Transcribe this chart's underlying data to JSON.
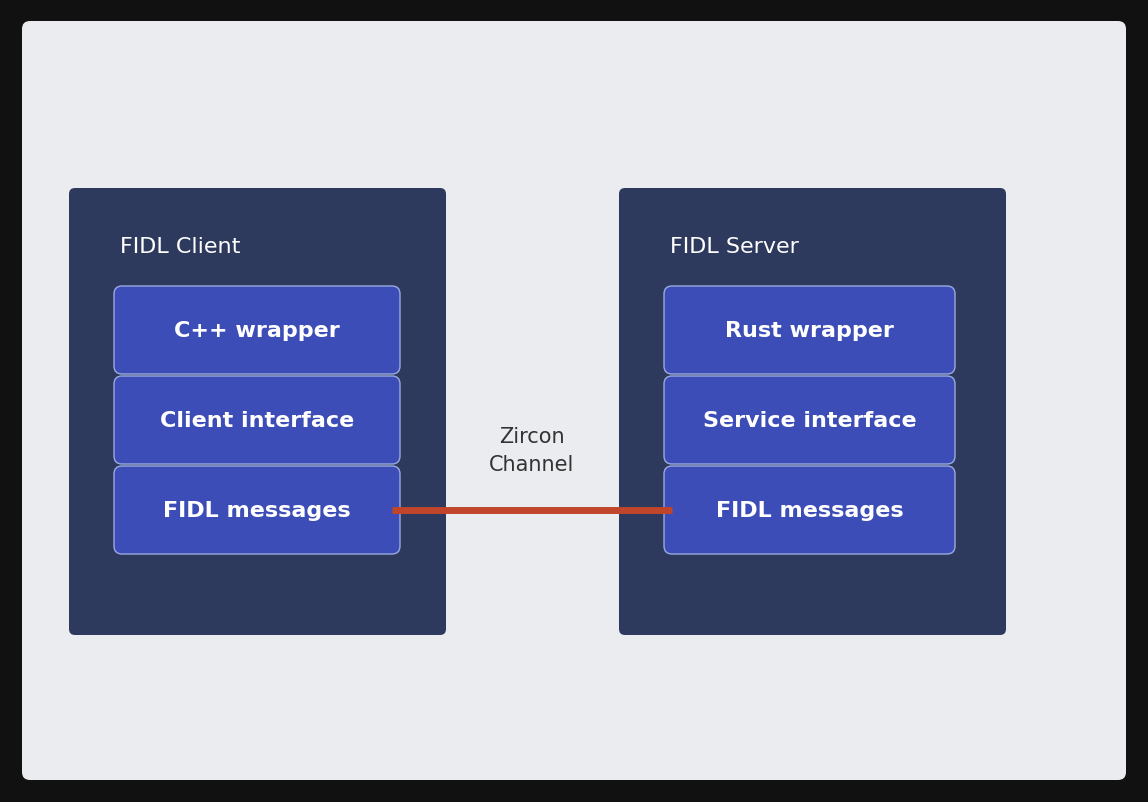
{
  "background_outer": "#111111",
  "background_inner": "#eaecf0",
  "panel_color": "#2d3a5e",
  "box_color": "#3d4db7",
  "box_edge_color": "#9aaadd",
  "arrow_color": "#c0452b",
  "text_color_white": "#ffffff",
  "text_color_dark": "#333333",
  "client_label": "FIDL Client",
  "server_label": "FIDL Server",
  "client_boxes": [
    "C++ wrapper",
    "Client interface",
    "FIDL messages"
  ],
  "server_boxes": [
    "Rust wrapper",
    "Service interface",
    "FIDL messages"
  ],
  "channel_label": "Zircon\nChannel",
  "figsize": [
    11.48,
    8.03
  ],
  "dpi": 100
}
